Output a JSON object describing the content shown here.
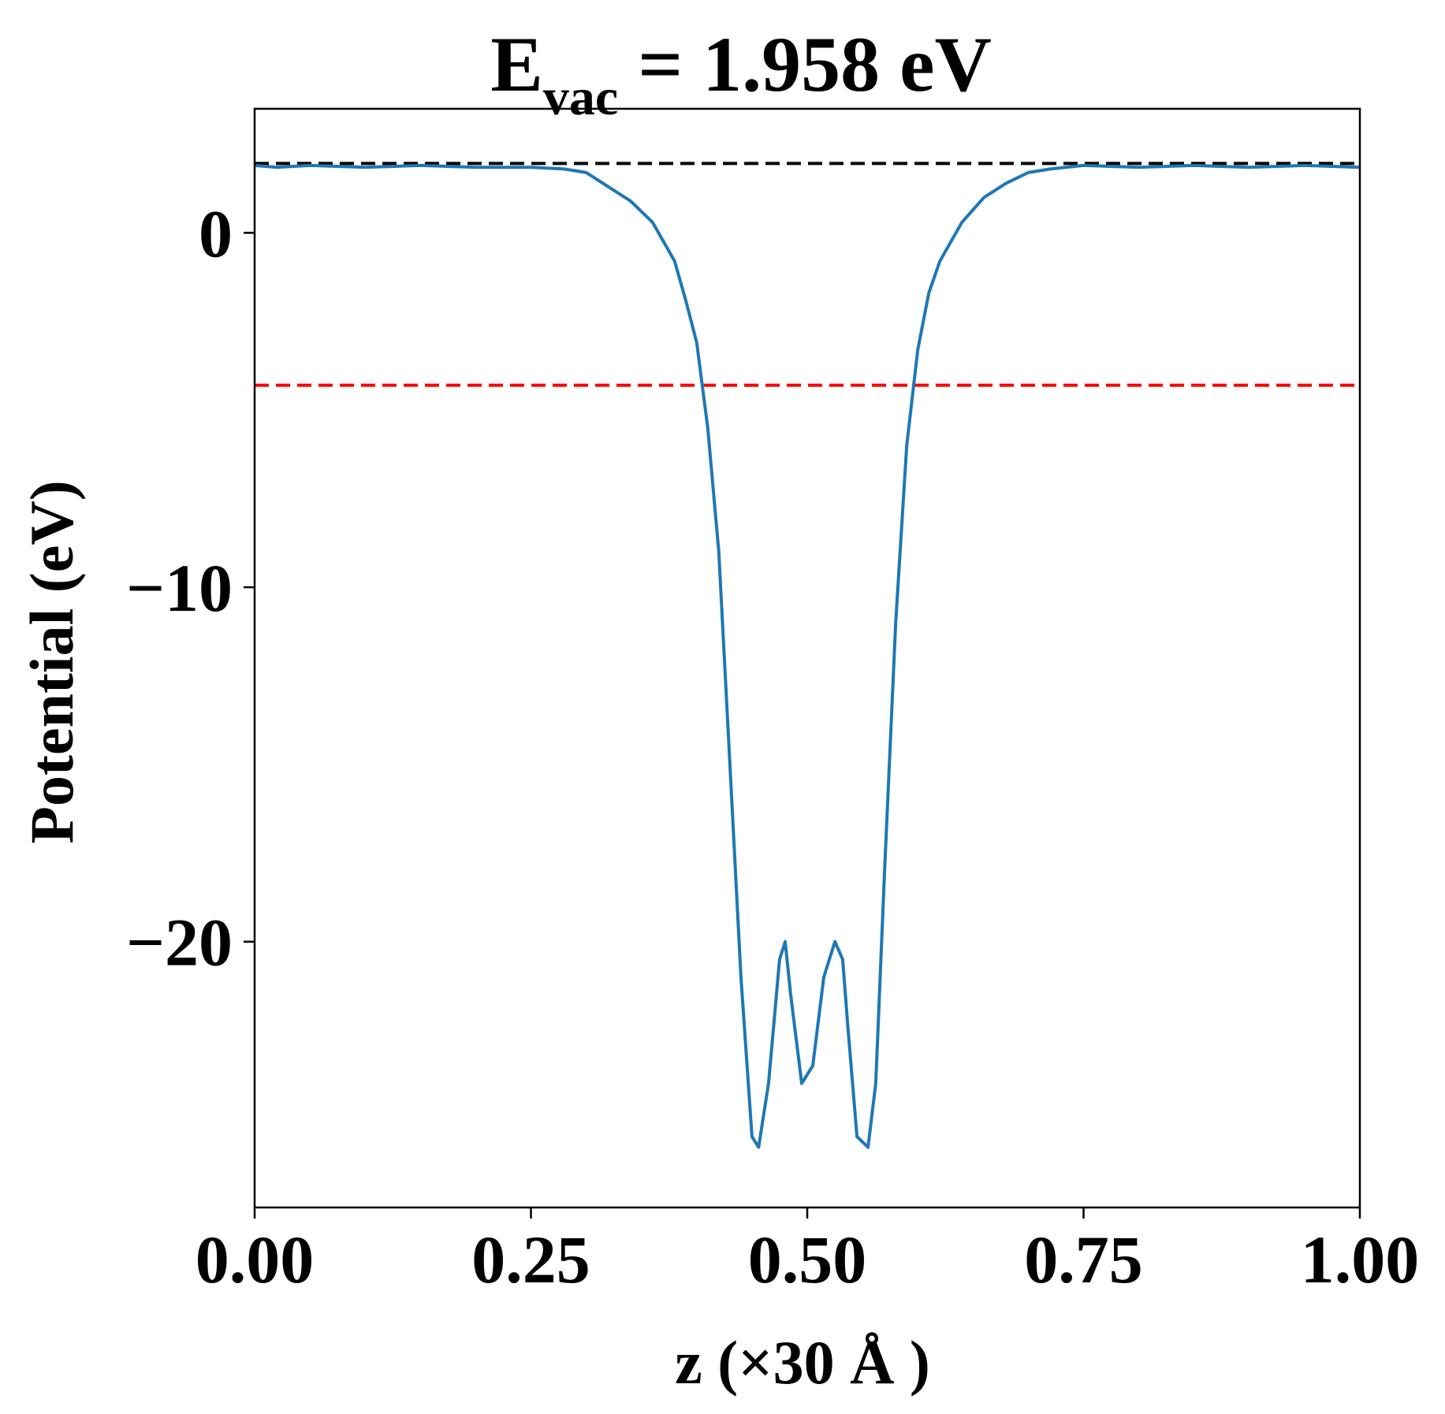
{
  "chart_data": {
    "type": "line",
    "title": {
      "main": "E",
      "subscript": "vac",
      "rest": " = 1.958 eV"
    },
    "xlabel": "z (×30 Å )",
    "ylabel": "Potential (eV)",
    "xlim": [
      0.0,
      1.0
    ],
    "ylim": [
      -27.5,
      3.5
    ],
    "x_ticks": [
      0.0,
      0.25,
      0.5,
      0.75,
      1.0
    ],
    "x_tick_labels": [
      "0.00",
      "0.25",
      "0.50",
      "0.75",
      "1.00"
    ],
    "y_ticks": [
      0,
      -10,
      -20
    ],
    "y_tick_labels": [
      "0",
      "−10",
      "−20"
    ],
    "grid": false,
    "legend": "none",
    "reference_lines": [
      {
        "y": 1.958,
        "color": "#000000",
        "style": "dashed"
      },
      {
        "y": -4.3,
        "color": "#ff0000",
        "style": "dashed"
      }
    ],
    "series": [
      {
        "color": "#1f77b4",
        "x": [
          0.0,
          0.02,
          0.05,
          0.1,
          0.15,
          0.2,
          0.25,
          0.28,
          0.3,
          0.32,
          0.34,
          0.36,
          0.38,
          0.39,
          0.4,
          0.41,
          0.42,
          0.43,
          0.44,
          0.45,
          0.456,
          0.465,
          0.475,
          0.48,
          0.485,
          0.495,
          0.505,
          0.515,
          0.525,
          0.532,
          0.537,
          0.545,
          0.555,
          0.562,
          0.57,
          0.58,
          0.59,
          0.6,
          0.61,
          0.62,
          0.64,
          0.66,
          0.68,
          0.7,
          0.72,
          0.75,
          0.8,
          0.85,
          0.9,
          0.95,
          1.0
        ],
        "values": [
          1.9,
          1.85,
          1.9,
          1.85,
          1.9,
          1.85,
          1.85,
          1.8,
          1.7,
          1.3,
          0.9,
          0.3,
          -0.8,
          -1.9,
          -3.1,
          -5.5,
          -9.0,
          -15.0,
          -21.0,
          -25.5,
          -25.8,
          -24.0,
          -20.5,
          -20.0,
          -21.5,
          -24.0,
          -23.5,
          -21.0,
          -20.0,
          -20.5,
          -22.5,
          -25.5,
          -25.8,
          -24.0,
          -18.0,
          -11.0,
          -6.0,
          -3.3,
          -1.7,
          -0.8,
          0.3,
          1.0,
          1.4,
          1.7,
          1.8,
          1.9,
          1.85,
          1.9,
          1.85,
          1.9,
          1.85
        ]
      }
    ]
  }
}
